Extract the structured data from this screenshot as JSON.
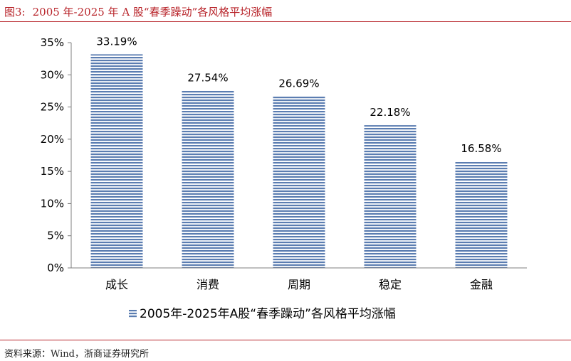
{
  "figure": {
    "label": "图3:",
    "title": "2005 年-2025 年 A 股“春季躁动”各风格平均涨幅"
  },
  "source": "资料来源：Wind，浙商证券研究所",
  "chart_data": {
    "type": "bar",
    "categories": [
      "成长",
      "消费",
      "周期",
      "稳定",
      "金融"
    ],
    "series": [
      {
        "name": "2005年-2025年A股“春季躁动”各风格平均涨幅",
        "values": [
          33.19,
          27.54,
          26.69,
          22.18,
          16.58
        ]
      }
    ],
    "data_labels": [
      "33.19%",
      "27.54%",
      "26.69%",
      "22.18%",
      "16.58%"
    ],
    "y_ticks": [
      "0%",
      "5%",
      "10%",
      "15%",
      "20%",
      "25%",
      "30%",
      "35%"
    ],
    "ylim": [
      0,
      35
    ],
    "y_step": 5,
    "grid": false,
    "legend_position": "bottom",
    "bar_color": "#5b7db1",
    "bar_pattern": "horizontal-stripes"
  }
}
